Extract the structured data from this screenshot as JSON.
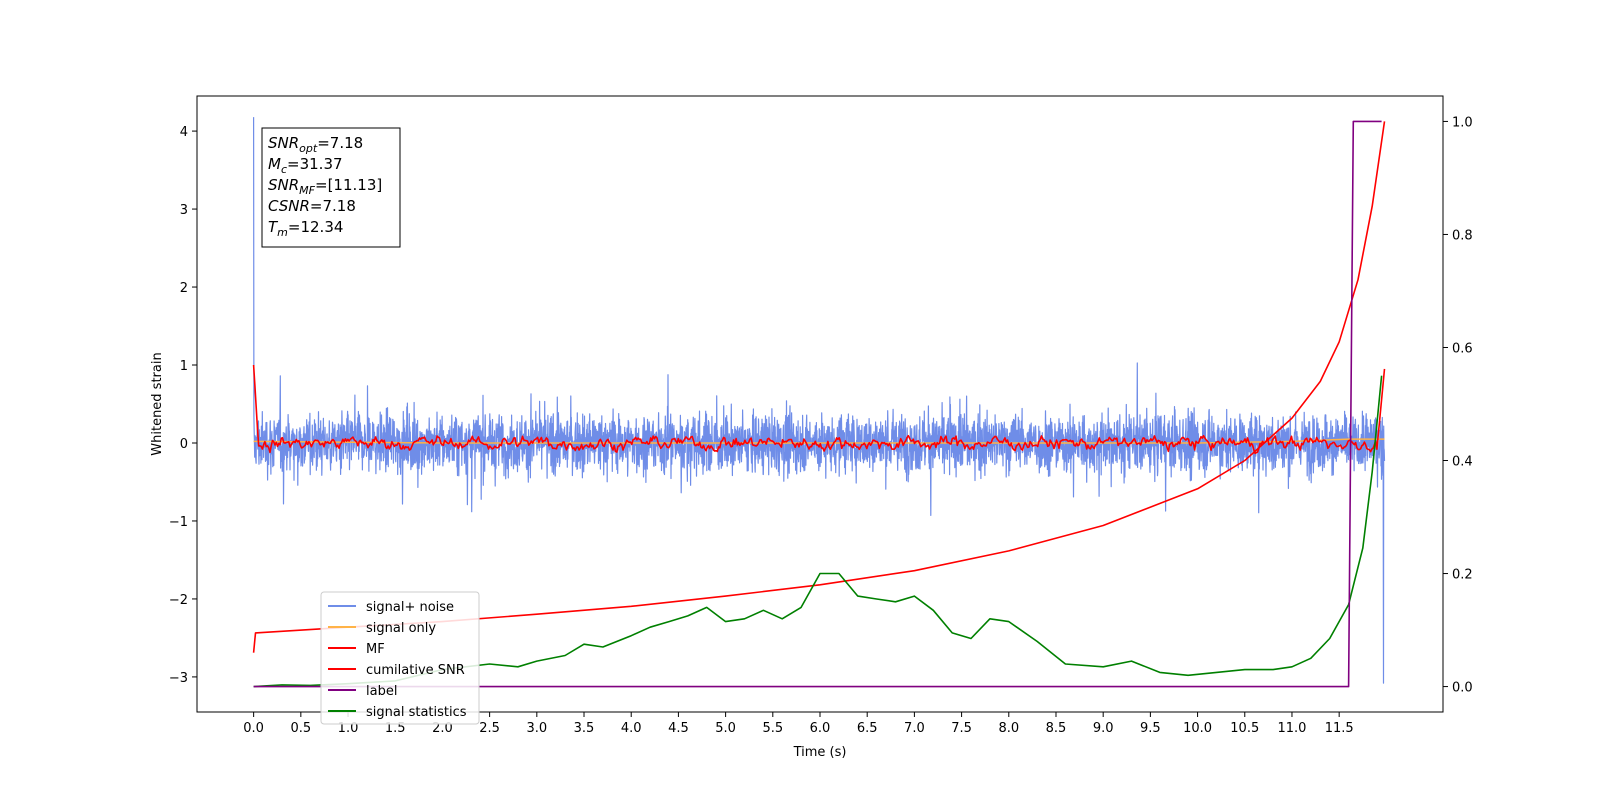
{
  "chart_data": {
    "type": "line",
    "title": "",
    "xlabel": "Time (s)",
    "ylabel": "Whitened strain",
    "xlim": [
      -0.6,
      12.6
    ],
    "ylim": [
      -3.45,
      4.45
    ],
    "y2lim": [
      -0.045,
      1.045
    ],
    "x_ticks": [
      "0.0",
      "0.5",
      "1.0",
      "1.5",
      "2.0",
      "2.5",
      "3.0",
      "3.5",
      "4.0",
      "4.5",
      "5.0",
      "5.5",
      "6.0",
      "6.5",
      "7.0",
      "7.5",
      "8.0",
      "8.5",
      "9.0",
      "9.5",
      "10.0",
      "10.5",
      "11.0",
      "11.5"
    ],
    "y_ticks": [
      "4",
      "3",
      "2",
      "1",
      "0",
      "−1",
      "−2",
      "−3"
    ],
    "y2_ticks": [
      "1.0",
      "0.8",
      "0.6",
      "0.4",
      "0.2",
      "0.0"
    ],
    "legend_position": "lower-left",
    "annotation": {
      "lines": [
        {
          "main": "SNR",
          "sub": "opt",
          "rest": "=7.18"
        },
        {
          "main": "M",
          "sub": "c",
          "rest": "=31.37"
        },
        {
          "main": "SNR",
          "sub": "MF",
          "rest": "=[11.13]"
        },
        {
          "main": "CSNR",
          "sub": "",
          "rest": "=7.18"
        },
        {
          "main": "T",
          "sub": "m",
          "rest": "=12.34"
        }
      ]
    },
    "series": [
      {
        "name": "signal+ noise",
        "axis": "left",
        "color": "#6f8de8",
        "kind": "noise",
        "x_range": [
          0.0,
          11.98
        ],
        "std": 0.33,
        "spikes": [
          [
            0.0,
            4.18
          ],
          [
            11.97,
            -3.08
          ]
        ]
      },
      {
        "name": "signal only",
        "axis": "left",
        "color": "#ffb347",
        "x": [
          0.0,
          2.0,
          4.0,
          6.0,
          8.0,
          10.0,
          11.0,
          11.6,
          11.98
        ],
        "values": [
          0.02,
          0.0,
          0.0,
          0.0,
          0.0,
          0.0,
          0.02,
          0.05,
          0.05
        ]
      },
      {
        "name": "MF",
        "axis": "left",
        "color": "#ff0000",
        "kind": "wiggle",
        "x_range": [
          0.0,
          11.98
        ],
        "start_value": 1.0,
        "amp": 0.09,
        "end": [
          [
            11.9,
            -0.08
          ],
          [
            11.98,
            0.95
          ]
        ]
      },
      {
        "name": "cumilative SNR",
        "axis": "right",
        "color": "#ff0000",
        "x": [
          0.0,
          0.02,
          1.0,
          2.0,
          3.0,
          4.0,
          5.0,
          6.0,
          7.0,
          8.0,
          9.0,
          10.0,
          10.5,
          11.0,
          11.3,
          11.5,
          11.7,
          11.85,
          11.98
        ],
        "values": [
          0.06,
          0.095,
          0.105,
          0.115,
          0.128,
          0.142,
          0.16,
          0.18,
          0.205,
          0.24,
          0.285,
          0.35,
          0.4,
          0.475,
          0.54,
          0.61,
          0.72,
          0.85,
          1.0
        ]
      },
      {
        "name": "label",
        "axis": "right",
        "color": "#800080",
        "x": [
          0.0,
          11.6,
          11.65,
          11.95
        ],
        "values": [
          0.0,
          0.0,
          1.0,
          1.0
        ]
      },
      {
        "name": "signal statistics",
        "axis": "right",
        "color": "#008000",
        "x": [
          0.0,
          0.3,
          0.6,
          1.0,
          1.5,
          2.0,
          2.5,
          2.8,
          3.0,
          3.3,
          3.5,
          3.7,
          4.0,
          4.2,
          4.4,
          4.6,
          4.8,
          5.0,
          5.2,
          5.4,
          5.6,
          5.8,
          6.0,
          6.2,
          6.4,
          6.6,
          6.8,
          7.0,
          7.2,
          7.4,
          7.6,
          7.8,
          8.0,
          8.3,
          8.6,
          9.0,
          9.3,
          9.6,
          9.9,
          10.2,
          10.5,
          10.8,
          11.0,
          11.2,
          11.4,
          11.6,
          11.75,
          11.85,
          11.95
        ],
        "values": [
          0.0,
          0.003,
          0.002,
          0.005,
          0.01,
          0.03,
          0.04,
          0.035,
          0.045,
          0.055,
          0.075,
          0.07,
          0.09,
          0.105,
          0.115,
          0.125,
          0.14,
          0.115,
          0.12,
          0.135,
          0.12,
          0.14,
          0.2,
          0.2,
          0.16,
          0.155,
          0.15,
          0.16,
          0.135,
          0.095,
          0.085,
          0.12,
          0.115,
          0.08,
          0.04,
          0.035,
          0.045,
          0.025,
          0.02,
          0.025,
          0.03,
          0.03,
          0.035,
          0.05,
          0.085,
          0.145,
          0.245,
          0.38,
          0.55
        ]
      }
    ]
  }
}
